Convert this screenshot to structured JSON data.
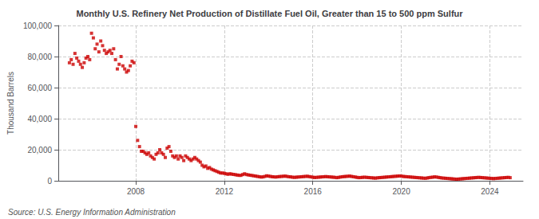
{
  "chart_data": {
    "type": "scatter",
    "title": "Monthly U.S. Refinery Net Production of Distillate Fuel Oil, Greater than 15 to 500 ppm Sulfur",
    "ylabel": "Thousand Barrels",
    "annotations": [
      "Source: U.S. Energy Information Administration"
    ],
    "color": "#cc0000",
    "marker": "square",
    "grid": true,
    "xlim": [
      2004.5,
      2025.5
    ],
    "xticks": [
      2008,
      2012,
      2016,
      2020,
      2024
    ],
    "ylim": [
      0,
      100000
    ],
    "yticks": [
      0,
      {
        "value": 20000,
        "label": "20,000"
      },
      {
        "value": 40000,
        "label": "40,000"
      },
      {
        "value": 60000,
        "label": "60,000"
      },
      {
        "value": 80000,
        "label": "80,000"
      },
      {
        "value": 100000,
        "label": "100,000"
      }
    ],
    "x": [
      2005.0,
      2005.083,
      2005.167,
      2005.25,
      2005.333,
      2005.417,
      2005.5,
      2005.583,
      2005.667,
      2005.75,
      2005.833,
      2005.917,
      2006.0,
      2006.083,
      2006.167,
      2006.25,
      2006.333,
      2006.417,
      2006.5,
      2006.583,
      2006.667,
      2006.75,
      2006.833,
      2006.917,
      2007.0,
      2007.083,
      2007.167,
      2007.25,
      2007.333,
      2007.417,
      2007.5,
      2007.583,
      2007.667,
      2007.75,
      2007.833,
      2007.917,
      2008.0,
      2008.083,
      2008.167,
      2008.25,
      2008.333,
      2008.417,
      2008.5,
      2008.583,
      2008.667,
      2008.75,
      2008.833,
      2008.917,
      2009.0,
      2009.083,
      2009.167,
      2009.25,
      2009.333,
      2009.417,
      2009.5,
      2009.583,
      2009.667,
      2009.75,
      2009.833,
      2009.917,
      2010.0,
      2010.083,
      2010.167,
      2010.25,
      2010.333,
      2010.417,
      2010.5,
      2010.583,
      2010.667,
      2010.75,
      2010.833,
      2010.917,
      2011.0,
      2011.083,
      2011.167,
      2011.25,
      2011.333,
      2011.417,
      2011.5,
      2011.583,
      2011.667,
      2011.75,
      2011.833,
      2011.917,
      2012.0,
      2012.083,
      2012.167,
      2012.25,
      2012.333,
      2012.417,
      2012.5,
      2012.583,
      2012.667,
      2012.75,
      2012.833,
      2012.917,
      2013.0,
      2013.083,
      2013.167,
      2013.25,
      2013.333,
      2013.417,
      2013.5,
      2013.583,
      2013.667,
      2013.75,
      2013.833,
      2013.917,
      2014.0,
      2014.083,
      2014.167,
      2014.25,
      2014.333,
      2014.417,
      2014.5,
      2014.583,
      2014.667,
      2014.75,
      2014.833,
      2014.917,
      2015.0,
      2015.083,
      2015.167,
      2015.25,
      2015.333,
      2015.417,
      2015.5,
      2015.583,
      2015.667,
      2015.75,
      2015.833,
      2015.917,
      2016.0,
      2016.083,
      2016.167,
      2016.25,
      2016.333,
      2016.417,
      2016.5,
      2016.583,
      2016.667,
      2016.75,
      2016.833,
      2016.917,
      2017.0,
      2017.083,
      2017.167,
      2017.25,
      2017.333,
      2017.417,
      2017.5,
      2017.583,
      2017.667,
      2017.75,
      2017.833,
      2017.917,
      2018.0,
      2018.083,
      2018.167,
      2018.25,
      2018.333,
      2018.417,
      2018.5,
      2018.583,
      2018.667,
      2018.75,
      2018.833,
      2018.917,
      2019.0,
      2019.083,
      2019.167,
      2019.25,
      2019.333,
      2019.417,
      2019.5,
      2019.583,
      2019.667,
      2019.75,
      2019.833,
      2019.917,
      2020.0,
      2020.083,
      2020.167,
      2020.25,
      2020.333,
      2020.417,
      2020.5,
      2020.583,
      2020.667,
      2020.75,
      2020.833,
      2020.917,
      2021.0,
      2021.083,
      2021.167,
      2021.25,
      2021.333,
      2021.417,
      2021.5,
      2021.583,
      2021.667,
      2021.75,
      2021.833,
      2021.917,
      2022.0,
      2022.083,
      2022.167,
      2022.25,
      2022.333,
      2022.417,
      2022.5,
      2022.583,
      2022.667,
      2022.75,
      2022.833,
      2022.917,
      2023.0,
      2023.083,
      2023.167,
      2023.25,
      2023.333,
      2023.417,
      2023.5,
      2023.583,
      2023.667,
      2023.75,
      2023.833,
      2023.917,
      2024.0,
      2024.083,
      2024.167,
      2024.25,
      2024.333,
      2024.417,
      2024.5,
      2024.583,
      2024.667,
      2024.75,
      2024.833,
      2024.917
    ],
    "values": [
      76000,
      78000,
      75000,
      82000,
      79000,
      77000,
      75000,
      73000,
      76000,
      79000,
      80000,
      78000,
      95000,
      92000,
      85000,
      88000,
      83000,
      90000,
      87000,
      84000,
      82000,
      83000,
      84000,
      82000,
      85000,
      78000,
      72000,
      75000,
      80000,
      74000,
      72000,
      70000,
      71000,
      74000,
      77000,
      76000,
      35000,
      26000,
      22000,
      19000,
      19000,
      18000,
      17000,
      18000,
      16000,
      15000,
      14000,
      17000,
      18000,
      20000,
      18000,
      17000,
      15000,
      21000,
      22000,
      19000,
      16000,
      15000,
      16000,
      14000,
      16000,
      15000,
      13000,
      16000,
      15000,
      14000,
      13000,
      14000,
      15000,
      14000,
      13000,
      12000,
      10000,
      9000,
      9500,
      8000,
      8500,
      7500,
      7000,
      6500,
      6000,
      5500,
      5000,
      5000,
      4800,
      4500,
      4200,
      4500,
      4300,
      4100,
      3900,
      3700,
      3500,
      3500,
      4000,
      4500,
      4000,
      3800,
      3600,
      3400,
      3200,
      3000,
      2800,
      2600,
      2400,
      2500,
      2800,
      3200,
      3000,
      2800,
      2600,
      2500,
      2400,
      2600,
      2700,
      2800,
      2900,
      3000,
      2800,
      2600,
      2500,
      2300,
      2200,
      2300,
      2400,
      2500,
      2600,
      2700,
      2800,
      2900,
      2700,
      2500,
      2300,
      2100,
      2200,
      2300,
      2400,
      2500,
      2600,
      2700,
      2600,
      2500,
      2400,
      2300,
      2200,
      2000,
      2200,
      2400,
      2600,
      2700,
      2800,
      2900,
      3000,
      2800,
      2600,
      2400,
      2200,
      2000,
      2100,
      2200,
      2300,
      2200,
      2100,
      2000,
      1900,
      1800,
      1700,
      1900,
      2000,
      2100,
      2200,
      2300,
      2400,
      2500,
      2600,
      2700,
      2800,
      2900,
      3000,
      3100,
      3000,
      2800,
      2700,
      2600,
      2500,
      2400,
      2300,
      2200,
      2100,
      2000,
      1900,
      1800,
      1700,
      1600,
      1800,
      2000,
      2200,
      2300,
      2500,
      2400,
      2200,
      2000,
      1800,
      1700,
      1600,
      1500,
      1400,
      1300,
      1200,
      1100,
      1000,
      1100,
      1200,
      1300,
      1400,
      1500,
      1600,
      1700,
      1800,
      1900,
      2000,
      2100,
      2200,
      2100,
      2000,
      1900,
      1800,
      1700,
      1600,
      1500,
      1400,
      1500,
      1600,
      1700,
      1800,
      1900,
      2000,
      2100,
      2200,
      2000
    ]
  }
}
